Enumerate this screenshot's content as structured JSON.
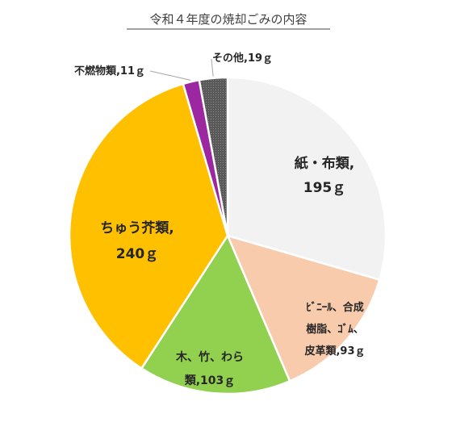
{
  "chart_data": {
    "type": "pie",
    "title": "令和４年度の焼却ごみの内容",
    "slices": [
      {
        "lines": [
          "紙・布類,",
          "195ｇ"
        ],
        "value": 195,
        "color": "#f2f2f2"
      },
      {
        "lines": [
          "ﾋﾞﾆｰﾙ、合成",
          "樹脂、ｺﾞﾑ、",
          "皮革類,93ｇ"
        ],
        "value": 93,
        "color": "#f8cbad"
      },
      {
        "lines": [
          "木、竹、わら",
          "類,103ｇ"
        ],
        "value": 103,
        "color": "#92d050"
      },
      {
        "lines": [
          "ちゅう芥類,",
          "240ｇ"
        ],
        "value": 240,
        "color": "#ffc000"
      },
      {
        "lines": [
          "不燃物類,11ｇ"
        ],
        "value": 11,
        "color": "#9c27a0"
      },
      {
        "lines": [
          "その他,19ｇ"
        ],
        "value": 19,
        "color": "#595959"
      }
    ]
  }
}
